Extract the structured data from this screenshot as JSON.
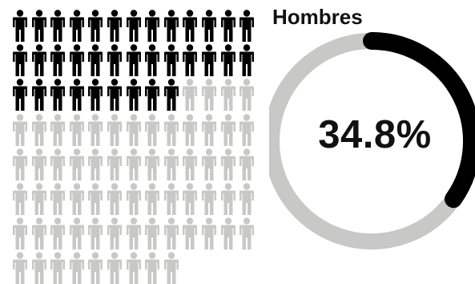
{
  "chart_data": {
    "type": "pictograph",
    "title": "Hombres",
    "value_label": "34.8%",
    "value": 34.8,
    "icons_filled": 35,
    "icons_total": 100,
    "grid_columns": 13,
    "colors": {
      "filled": "#000000",
      "empty": "#c8c8c6",
      "ring_filled": "#000000",
      "ring_empty": "#c8c8c6",
      "text": "#111111"
    }
  }
}
